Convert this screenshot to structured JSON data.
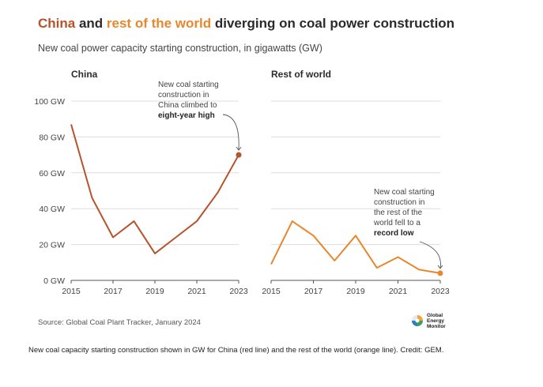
{
  "title": {
    "part1": "China",
    "part2": " and ",
    "part3": "rest of the world",
    "part4": " diverging on coal power construction"
  },
  "subtitle": "New coal power capacity starting construction, in gigawatts (GW)",
  "source": "Source: Global Coal Plant Tracker, January 2024",
  "logo": {
    "lines": [
      "Global",
      "Energy",
      "Monitor"
    ]
  },
  "caption": "New coal capacity starting construction shown in GW for China (red line) and the rest of the world (orange line). Credit: GEM.",
  "colors": {
    "china": "#b5532a",
    "rest_of_world": "#e8872d",
    "grid": "#dddddd",
    "axis": "#555555"
  },
  "chart_data": [
    {
      "type": "line",
      "title": "China",
      "x": [
        2015,
        2016,
        2017,
        2018,
        2019,
        2020,
        2021,
        2022,
        2023
      ],
      "series": [
        {
          "name": "China",
          "values": [
            87,
            46,
            24,
            33,
            15,
            24,
            33,
            49,
            70
          ]
        }
      ],
      "ylim": [
        0,
        100
      ],
      "yticks": [
        0,
        20,
        40,
        60,
        80,
        100
      ],
      "ytick_labels": [
        "0 GW",
        "20 GW",
        "40 GW",
        "60 GW",
        "80 GW",
        "100 GW"
      ],
      "xticks": [
        2015,
        2017,
        2019,
        2021,
        2023
      ],
      "xtick_labels": [
        "2015",
        "2017",
        "2019",
        "2021",
        "2023"
      ],
      "grid": true,
      "annotation": {
        "lines": [
          "New coal starting",
          "construction in",
          "China climbed to"
        ],
        "bold": "eight-year high"
      }
    },
    {
      "type": "line",
      "title": "Rest of world",
      "x": [
        2015,
        2016,
        2017,
        2018,
        2019,
        2020,
        2021,
        2022,
        2023
      ],
      "series": [
        {
          "name": "Rest of world",
          "values": [
            9,
            33,
            25,
            11,
            25,
            7,
            13,
            6,
            4
          ]
        }
      ],
      "ylim": [
        0,
        100
      ],
      "xticks": [
        2015,
        2017,
        2019,
        2021,
        2023
      ],
      "xtick_labels": [
        "2015",
        "2017",
        "2019",
        "2021",
        "2023"
      ],
      "grid": true,
      "annotation": {
        "lines": [
          "New coal starting",
          "construction in",
          "the rest of the",
          "world fell to a"
        ],
        "bold": "record low"
      }
    }
  ]
}
